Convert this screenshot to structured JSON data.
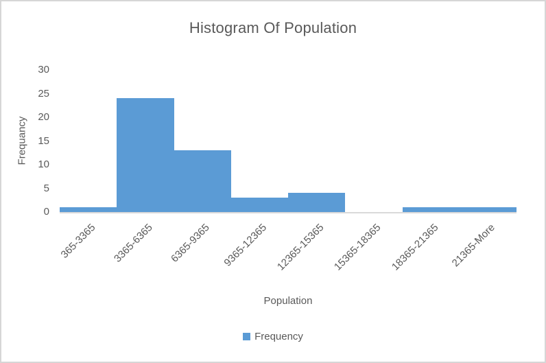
{
  "chart_data": {
    "type": "bar",
    "title": "Histogram Of Population",
    "categories": [
      "365-3365",
      "3365-6365",
      "6365-9365",
      "9365-12365",
      "12365-15365",
      "15365-18365",
      "18365-21365",
      "21365-More"
    ],
    "values": [
      1,
      24,
      13,
      3,
      4,
      0,
      1,
      1
    ],
    "series_name": "Frequency",
    "xlabel": "Population",
    "ylabel": "Frequancy",
    "yticks": [
      0,
      5,
      10,
      15,
      20,
      25,
      30
    ],
    "ylim": [
      0,
      30
    ],
    "grid": false,
    "gap_width_percent": 0,
    "legend_position": "bottom",
    "bar_color": "#5b9bd5",
    "text_color": "#595959",
    "axis_line_color": "#d9d9d9",
    "frame_border_color": "#d6d6d6"
  }
}
